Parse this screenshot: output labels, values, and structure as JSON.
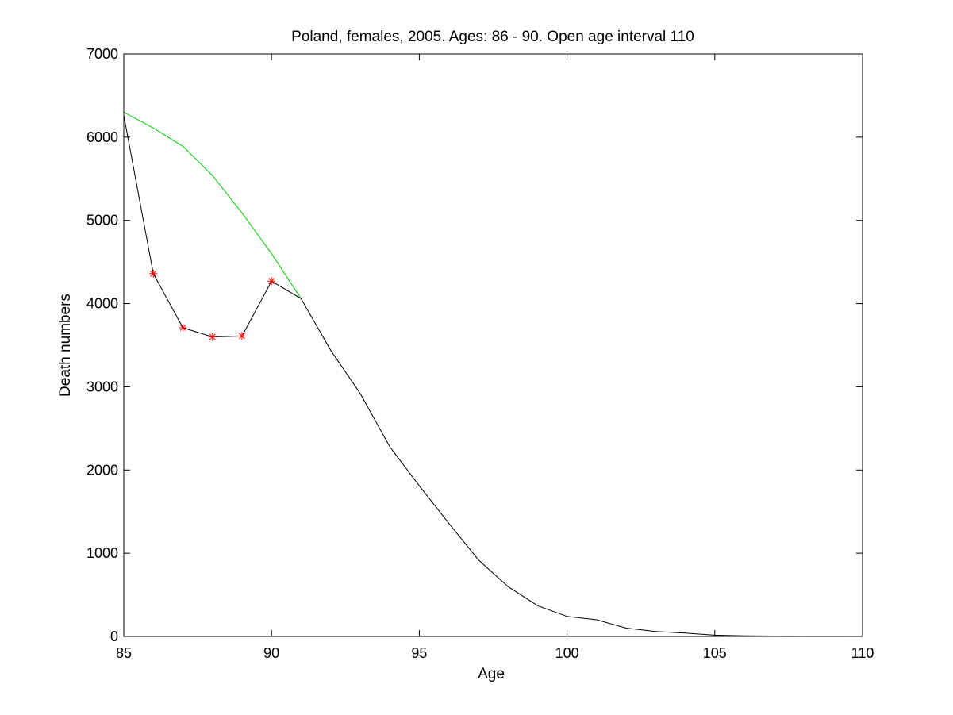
{
  "chart_data": {
    "type": "line",
    "title": "Poland, females, 2005. Ages: 86 - 90. Open age interval 110",
    "xlabel": "Age",
    "ylabel": "Death numbers",
    "xlim": [
      85,
      110
    ],
    "ylim": [
      0,
      7000
    ],
    "xticks": [
      "85",
      "90",
      "95",
      "100",
      "105",
      "110"
    ],
    "yticks": [
      "0",
      "1000",
      "2000",
      "3000",
      "4000",
      "5000",
      "6000",
      "7000"
    ],
    "grid": false,
    "legend": "none",
    "series": [
      {
        "color": "#00cc00",
        "style": "line",
        "x": [
          85,
          86,
          87,
          88,
          89,
          90,
          91
        ],
        "y": [
          6300,
          6110,
          5890,
          5540,
          5090,
          4600,
          4060
        ]
      },
      {
        "color": "#000000",
        "style": "line",
        "x": [
          85,
          86,
          87,
          88,
          89,
          90,
          91,
          92,
          93,
          94,
          95,
          96,
          97,
          98,
          99,
          100,
          101,
          102,
          103,
          104,
          105,
          106,
          107,
          108,
          109,
          110
        ],
        "y": [
          6260,
          4360,
          3710,
          3600,
          3610,
          4270,
          4060,
          3440,
          2920,
          2280,
          1810,
          1360,
          920,
          600,
          370,
          240,
          200,
          100,
          60,
          40,
          15,
          8,
          5,
          3,
          2,
          1
        ]
      },
      {
        "color": "#ff0000",
        "style": "markers",
        "marker": "asterisk",
        "x": [
          86,
          87,
          88,
          89,
          90
        ],
        "y": [
          4360,
          3710,
          3600,
          3610,
          4270
        ]
      }
    ]
  }
}
